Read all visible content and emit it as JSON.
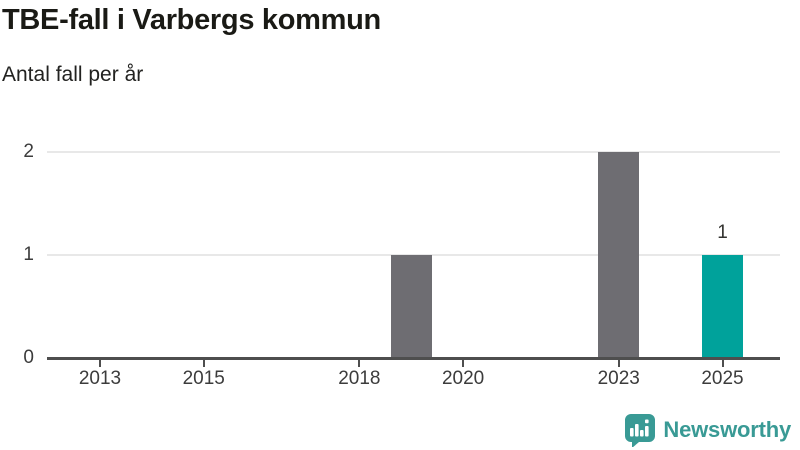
{
  "chart": {
    "title": "TBE-fall i Varbergs kommun",
    "subtitle": "Antal fall per år"
  },
  "chart_data": {
    "type": "bar",
    "title": "TBE-fall i Varbergs kommun",
    "subtitle": "Antal fall per år",
    "x": [
      2019,
      2023,
      2025
    ],
    "values": [
      1,
      2,
      1
    ],
    "bar_colors": [
      "#6e6d72",
      "#6e6d72",
      "#00a29b"
    ],
    "data_labels": [
      null,
      null,
      "1"
    ],
    "xticks": [
      2013,
      2015,
      2018,
      2020,
      2023,
      2025
    ],
    "yticks": [
      0,
      1,
      2
    ],
    "xlim": [
      2012,
      2026.1
    ],
    "ylim": [
      0,
      2
    ],
    "grid": "horizontal",
    "legend": "none",
    "colors": {
      "bar_default": "#6e6d72",
      "bar_highlight": "#00a29b",
      "grid": "#e8e8e8",
      "axis": "#4e4e4e",
      "text": "#3c3c3c"
    }
  },
  "branding": {
    "logo_text": "Newsworthy",
    "logo_color": "#399a95"
  }
}
